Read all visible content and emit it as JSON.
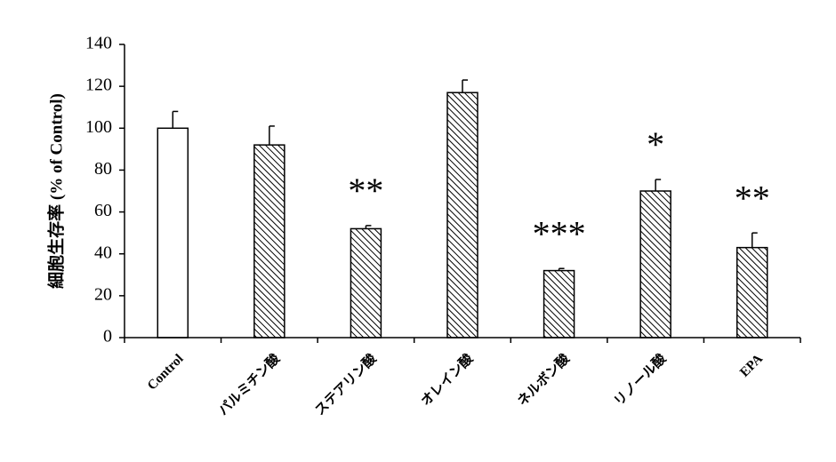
{
  "chart_data": {
    "type": "bar",
    "y_label": "細胞生存率 (% of Control)",
    "categories": [
      "Control",
      "パルミチン酸",
      "ステアリン酸",
      "オレイン酸",
      "ネルボン酸",
      "リノール酸",
      "EPA"
    ],
    "values": [
      100,
      92,
      52,
      117,
      32,
      70,
      43
    ],
    "errors": [
      8,
      9,
      1.5,
      6,
      1,
      5.5,
      7
    ],
    "annotations": [
      null,
      null,
      "**",
      null,
      "***",
      "*",
      "**"
    ],
    "fills": [
      "white",
      "hatch",
      "hatch",
      "hatch",
      "hatch",
      "hatch",
      "hatch"
    ],
    "color": "#000000",
    "ylim": [
      0,
      140
    ],
    "yticks": [
      0,
      20,
      40,
      60,
      80,
      100,
      120,
      140
    ],
    "grid": false
  }
}
